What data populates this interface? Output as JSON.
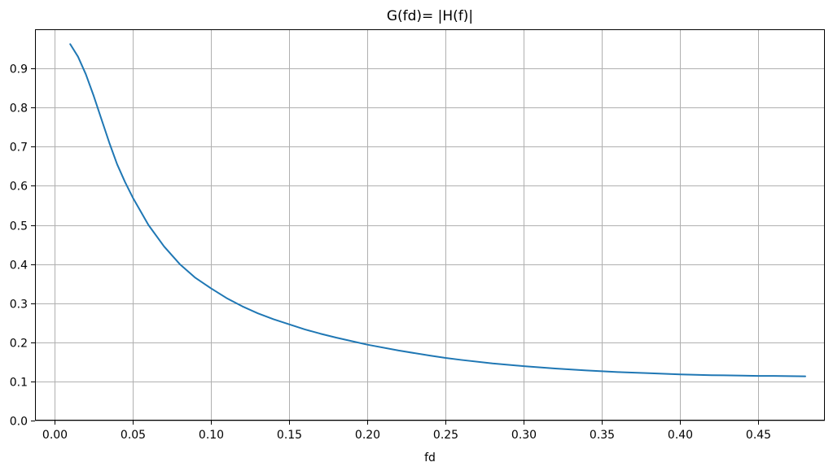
{
  "chart_data": {
    "type": "line",
    "title": "G(fd)= |H(f)|",
    "xlabel": "fd",
    "ylabel": "",
    "xlim": [
      -0.0125,
      0.4925
    ],
    "ylim": [
      0.0,
      1.0
    ],
    "grid": true,
    "x_ticks": [
      0.0,
      0.05,
      0.1,
      0.15,
      0.2,
      0.25,
      0.3,
      0.35,
      0.4,
      0.45
    ],
    "x_tick_labels": [
      "0.00",
      "0.05",
      "0.10",
      "0.15",
      "0.20",
      "0.25",
      "0.30",
      "0.35",
      "0.40",
      "0.45"
    ],
    "y_ticks": [
      0.0,
      0.1,
      0.2,
      0.3,
      0.4,
      0.5,
      0.6,
      0.7,
      0.8,
      0.9
    ],
    "y_tick_labels": [
      "0.0",
      "0.1",
      "0.2",
      "0.3",
      "0.4",
      "0.5",
      "0.6",
      "0.7",
      "0.8",
      "0.9"
    ],
    "line_color": "#1f77b4",
    "grid_color": "#b0b0b0",
    "series": [
      {
        "x": [
          0.01,
          0.015,
          0.02,
          0.025,
          0.03,
          0.035,
          0.04,
          0.045,
          0.05,
          0.06,
          0.07,
          0.08,
          0.09,
          0.1,
          0.11,
          0.12,
          0.13,
          0.14,
          0.15,
          0.16,
          0.17,
          0.18,
          0.19,
          0.2,
          0.22,
          0.24,
          0.25,
          0.26,
          0.28,
          0.3,
          0.32,
          0.34,
          0.35,
          0.36,
          0.38,
          0.4,
          0.42,
          0.44,
          0.45,
          0.46,
          0.48
        ],
        "y": [
          0.962,
          0.93,
          0.885,
          0.83,
          0.77,
          0.71,
          0.655,
          0.61,
          0.57,
          0.5,
          0.445,
          0.4,
          0.365,
          0.338,
          0.313,
          0.292,
          0.274,
          0.259,
          0.246,
          0.233,
          0.222,
          0.212,
          0.203,
          0.194,
          0.179,
          0.166,
          0.16,
          0.155,
          0.146,
          0.139,
          0.133,
          0.128,
          0.126,
          0.124,
          0.121,
          0.118,
          0.116,
          0.115,
          0.114,
          0.114,
          0.113
        ]
      }
    ]
  }
}
